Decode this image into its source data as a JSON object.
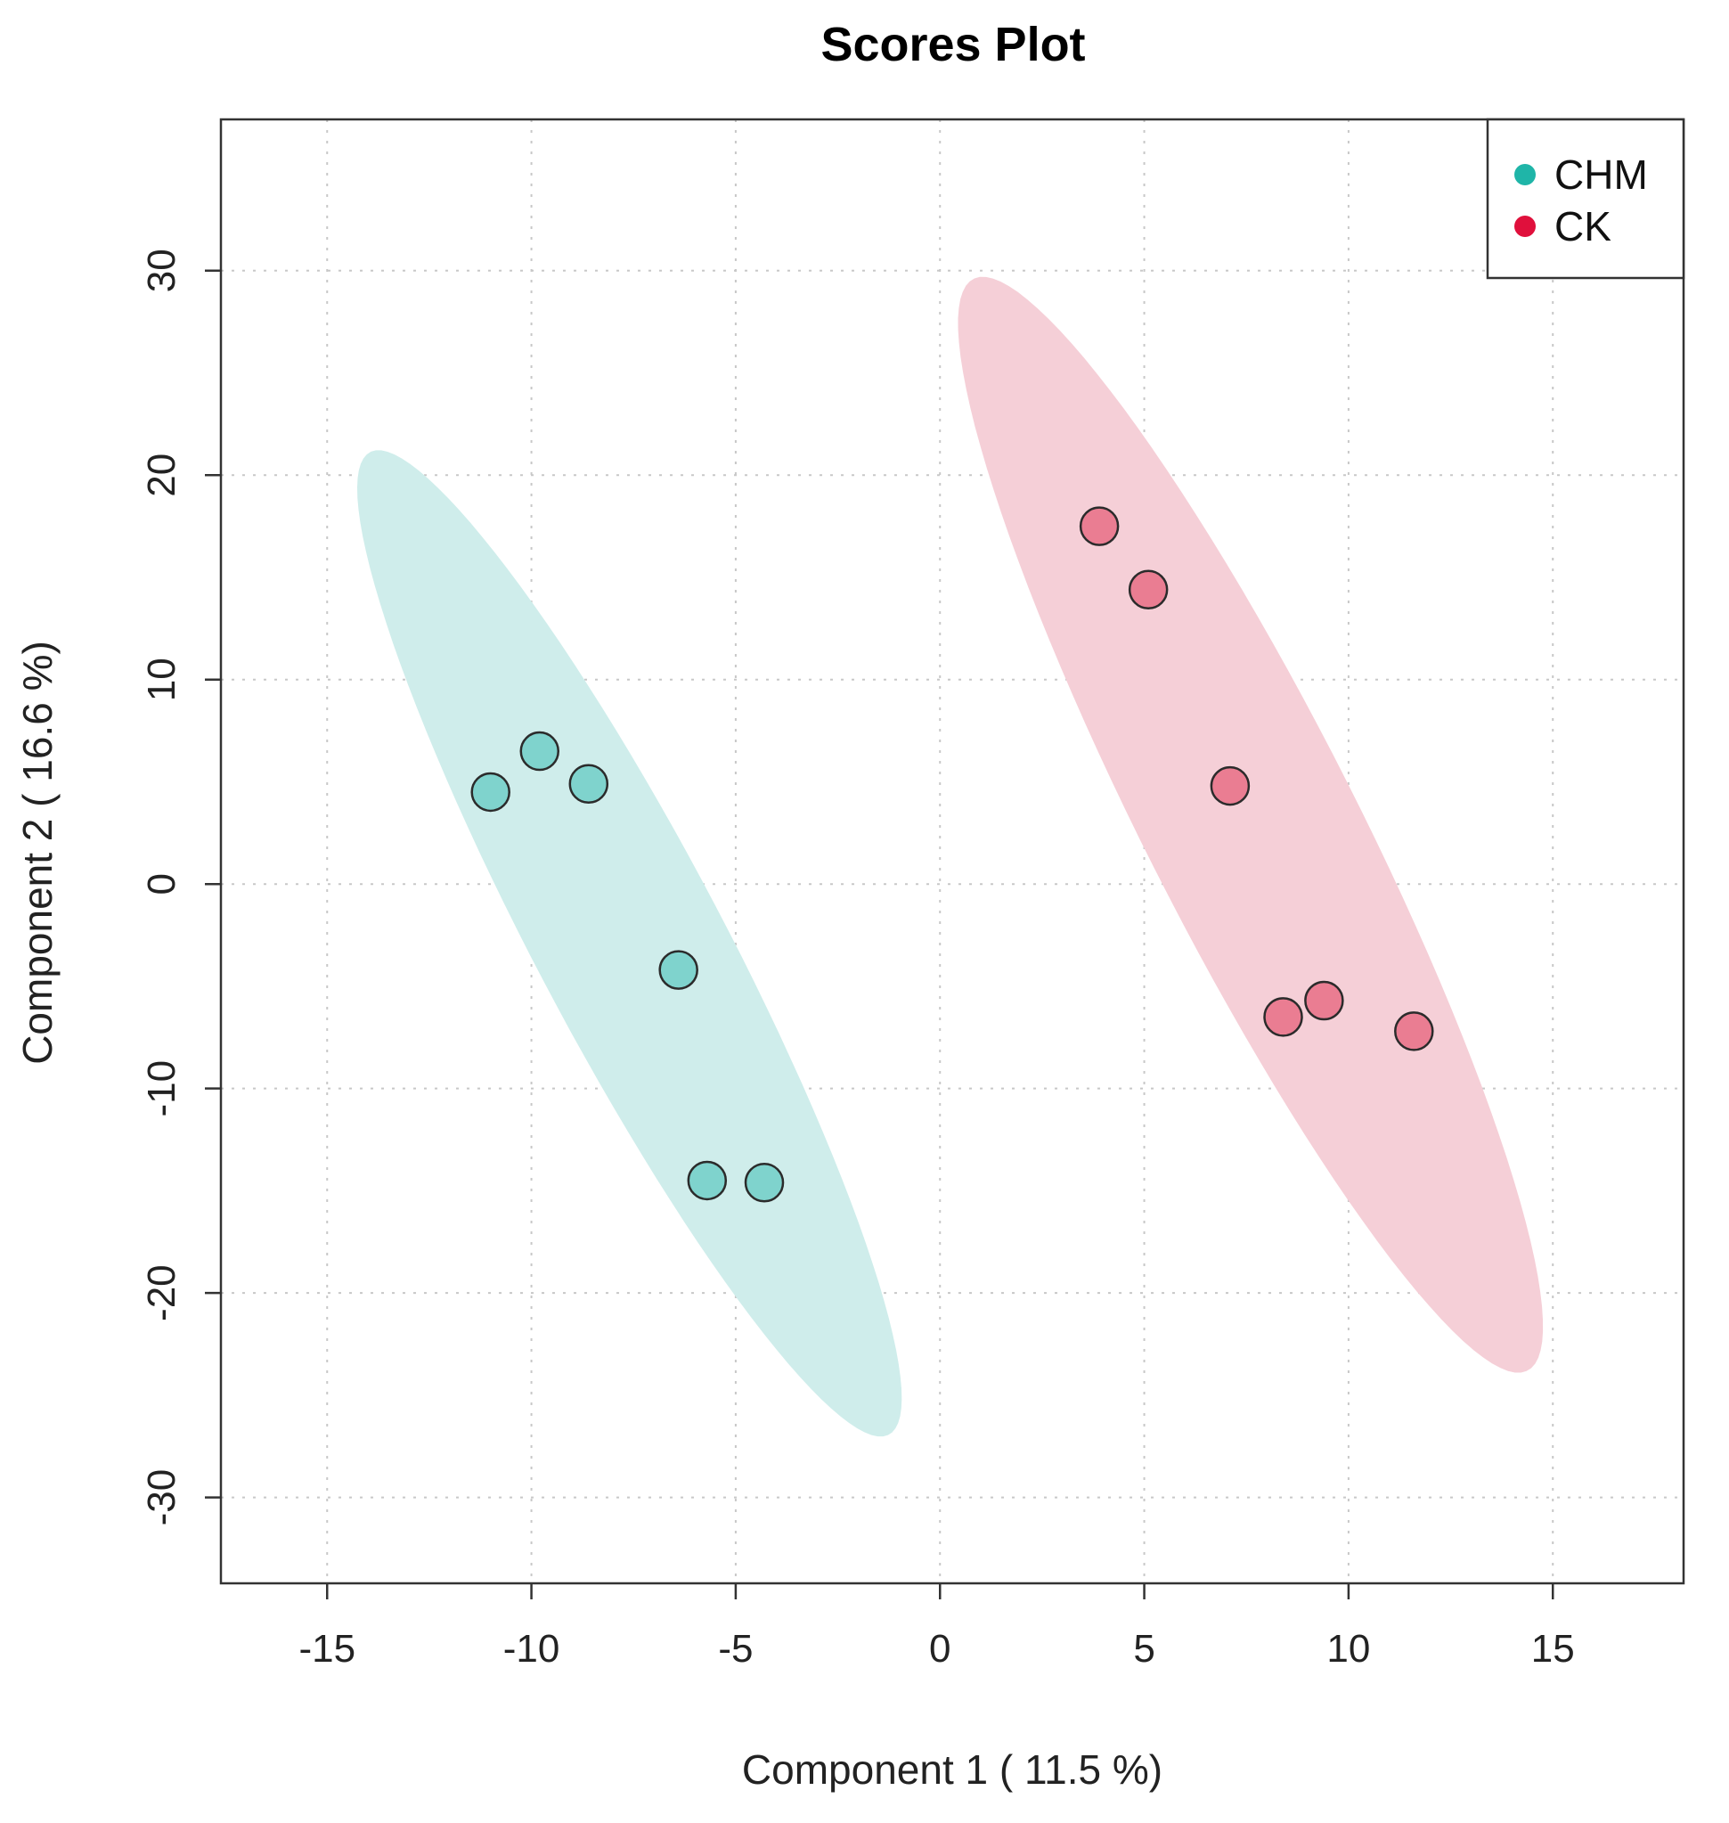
{
  "chart_data": {
    "type": "scatter",
    "title": "Scores Plot",
    "xlabel": "Component 1 ( 11.5 %)",
    "ylabel": "Component 2 ( 16.6 %)",
    "xlim": [
      -17.6,
      18.2
    ],
    "ylim": [
      -34.2,
      37.4
    ],
    "xticks": [
      -15,
      -10,
      -5,
      0,
      5,
      10,
      15
    ],
    "yticks": [
      -30,
      -20,
      -10,
      0,
      10,
      20,
      30
    ],
    "xtick_labels": [
      "-15",
      "-10",
      "-5",
      "0",
      "5",
      "10",
      "15"
    ],
    "ytick_labels": [
      "-30",
      "-20",
      "-10",
      "0",
      "10",
      "20",
      "30"
    ],
    "grid": true,
    "legend_position": "top-right",
    "series": [
      {
        "name": "CHM",
        "color": "#1fb5a8",
        "fill": "#7fd3cd",
        "region_fill": "#cfedeb",
        "x": [
          -11.0,
          -9.8,
          -8.6,
          -6.4,
          -5.7,
          -4.3
        ],
        "y": [
          4.5,
          6.5,
          4.9,
          -4.2,
          -14.5,
          -14.6
        ],
        "ellipse": {
          "center": [
            -7.6,
            -2.9
          ],
          "semi_major": 24.9,
          "semi_minor": 2.5,
          "direction": [
            6.0,
            -23.3
          ]
        }
      },
      {
        "name": "CK",
        "color": "#e0103c",
        "fill": "#ea7d92",
        "region_fill": "#f5cfd7",
        "x": [
          3.9,
          5.1,
          7.1,
          8.4,
          9.4,
          11.6
        ],
        "y": [
          17.5,
          14.4,
          4.8,
          -6.5,
          -5.7,
          -7.2
        ],
        "ellipse": {
          "center": [
            7.6,
            2.9
          ],
          "semi_major": 27.6,
          "semi_minor": 2.8,
          "direction": [
            6.6,
            -26.7
          ]
        }
      }
    ]
  }
}
